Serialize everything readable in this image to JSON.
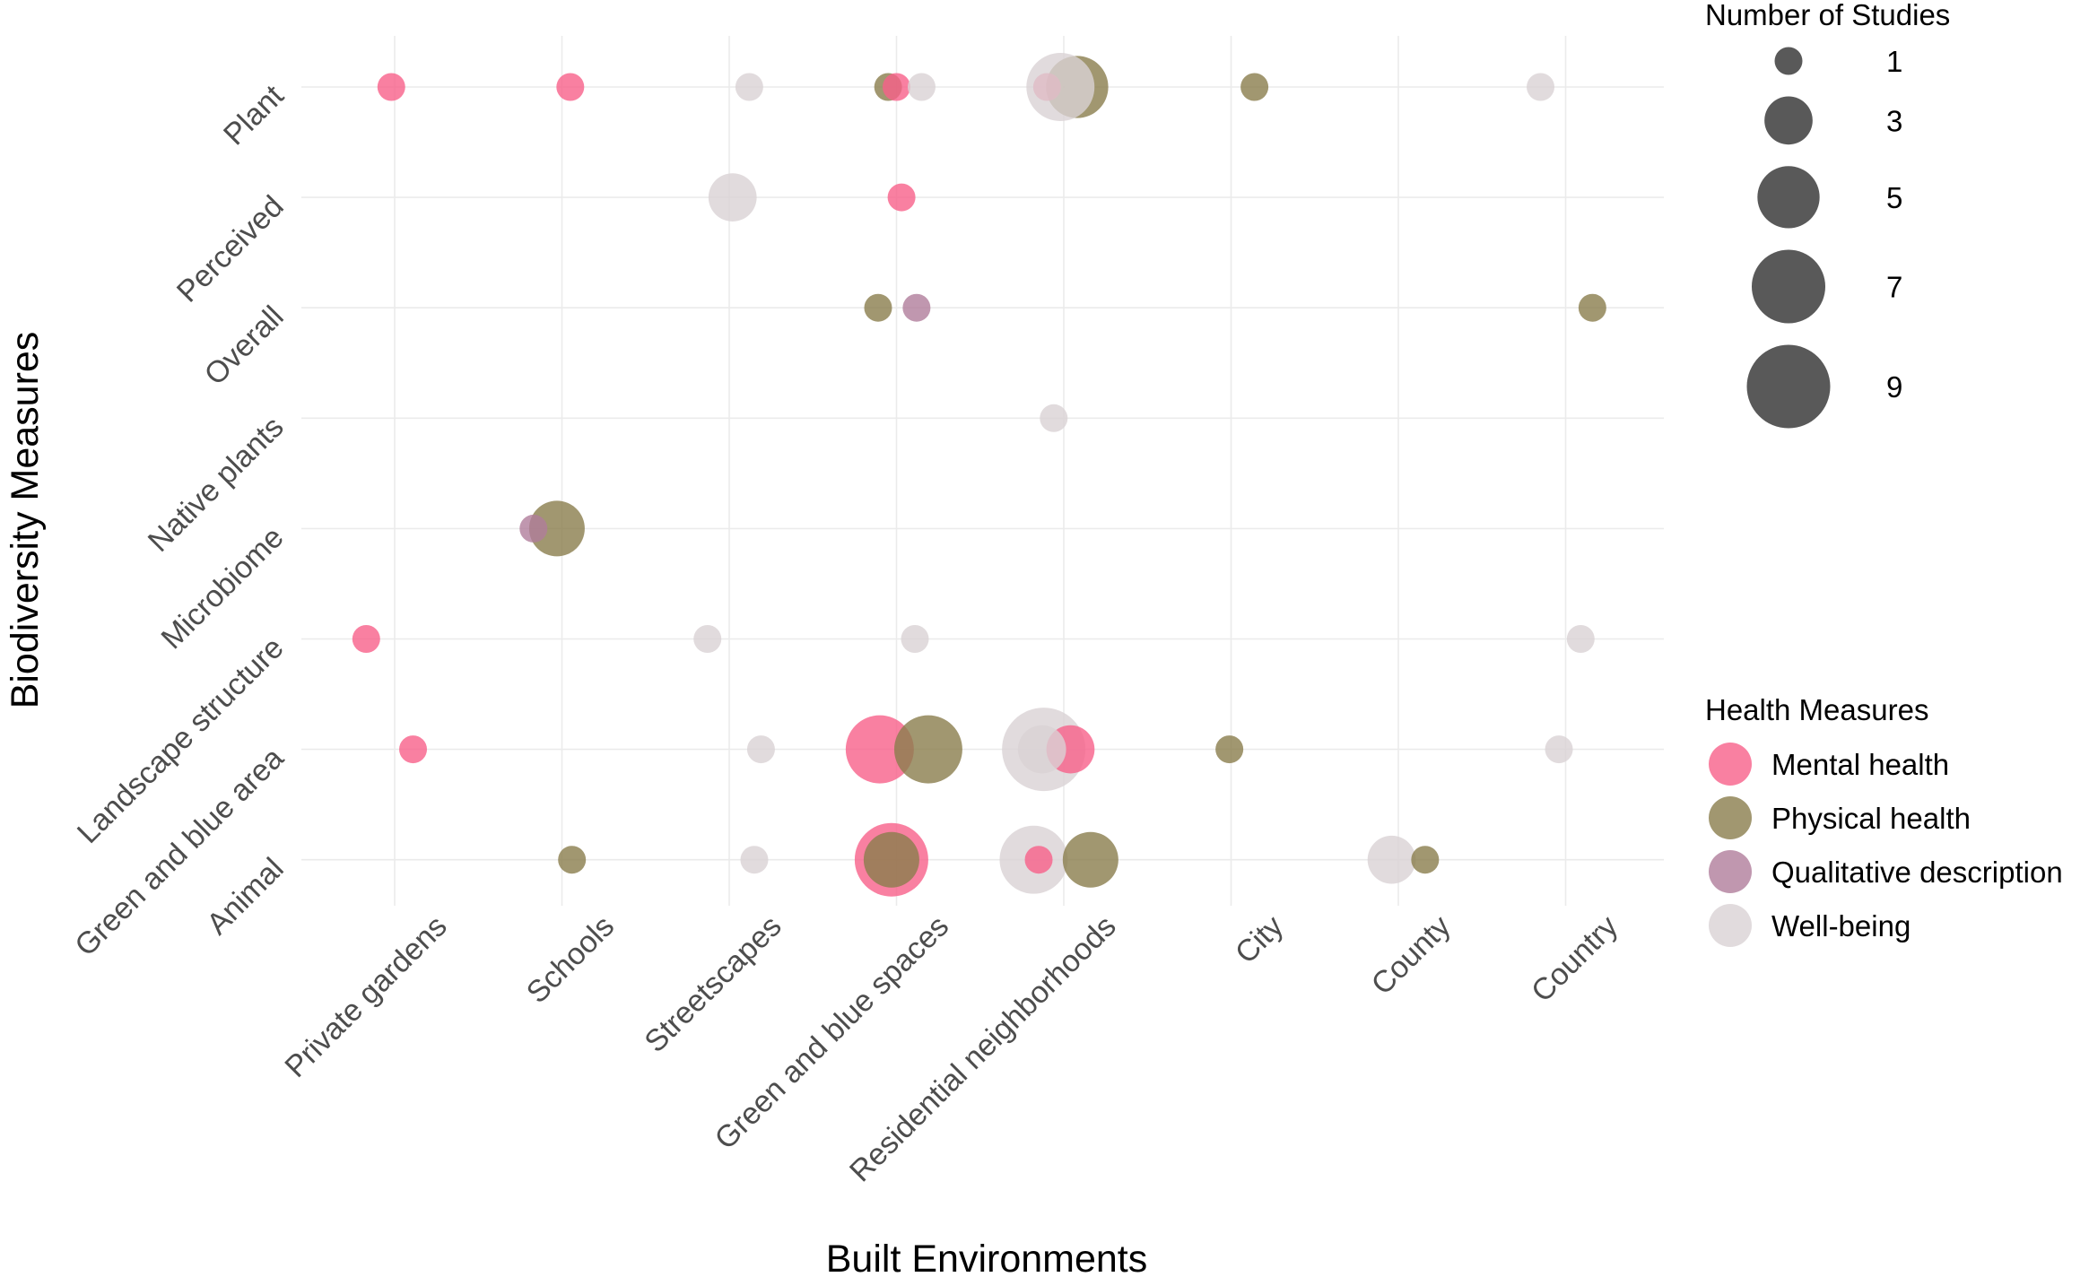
{
  "chart_data": {
    "type": "scatter",
    "title": "",
    "xlabel": "Built Environments",
    "ylabel": "Biodiversity Measures",
    "x_categories": [
      "Private gardens",
      "Schools",
      "Streetscapes",
      "Green and blue spaces",
      "Residential neighborhoods",
      "City",
      "County",
      "Country"
    ],
    "y_categories": [
      "Animal",
      "Green and blue area",
      "Landscape structure",
      "Microbiome",
      "Native plants",
      "Overall",
      "Perceived",
      "Plant"
    ],
    "size_legend": {
      "title": "Number of Studies",
      "values": [
        1,
        3,
        5,
        7,
        9
      ],
      "labels": [
        "1",
        "3",
        "5",
        "7",
        "9"
      ]
    },
    "color_legend": {
      "title": "Health Measures",
      "entries": [
        {
          "name": "Mental health",
          "color": "#f8608a"
        },
        {
          "name": "Physical health",
          "color": "#8a7d4c"
        },
        {
          "name": "Qualitative description",
          "color": "#b07d9b"
        },
        {
          "name": "Well-being",
          "color": "#d9d2d4"
        }
      ]
    },
    "grid": true,
    "points": [
      {
        "x": "Private gardens",
        "offset": -0.02,
        "y": "Plant",
        "group": "Mental health",
        "n": 1
      },
      {
        "x": "Schools",
        "offset": 0.05,
        "y": "Plant",
        "group": "Mental health",
        "n": 1
      },
      {
        "x": "Streetscapes",
        "offset": 0.12,
        "y": "Plant",
        "group": "Well-being",
        "n": 1
      },
      {
        "x": "Green and blue spaces",
        "offset": -0.05,
        "y": "Plant",
        "group": "Physical health",
        "n": 1
      },
      {
        "x": "Green and blue spaces",
        "offset": 0.0,
        "y": "Plant",
        "group": "Mental health",
        "n": 1
      },
      {
        "x": "Green and blue spaces",
        "offset": 0.15,
        "y": "Plant",
        "group": "Well-being",
        "n": 1
      },
      {
        "x": "Residential neighborhoods",
        "offset": 0.08,
        "y": "Plant",
        "group": "Physical health",
        "n": 5
      },
      {
        "x": "Residential neighborhoods",
        "offset": -0.1,
        "y": "Plant",
        "group": "Mental health",
        "n": 1
      },
      {
        "x": "Residential neighborhoods",
        "offset": -0.02,
        "y": "Plant",
        "group": "Well-being",
        "n": 6
      },
      {
        "x": "City",
        "offset": 0.14,
        "y": "Plant",
        "group": "Physical health",
        "n": 1
      },
      {
        "x": "Country",
        "offset": -0.15,
        "y": "Plant",
        "group": "Well-being",
        "n": 1
      },
      {
        "x": "Streetscapes",
        "offset": 0.02,
        "y": "Perceived",
        "group": "Well-being",
        "n": 3
      },
      {
        "x": "Green and blue spaces",
        "offset": 0.03,
        "y": "Perceived",
        "group": "Mental health",
        "n": 1
      },
      {
        "x": "Green and blue spaces",
        "offset": -0.11,
        "y": "Overall",
        "group": "Physical health",
        "n": 1
      },
      {
        "x": "Green and blue spaces",
        "offset": 0.12,
        "y": "Overall",
        "group": "Qualitative description",
        "n": 1
      },
      {
        "x": "Country",
        "offset": 0.16,
        "y": "Overall",
        "group": "Physical health",
        "n": 1
      },
      {
        "x": "Residential neighborhoods",
        "offset": -0.06,
        "y": "Native plants",
        "group": "Well-being",
        "n": 1
      },
      {
        "x": "Schools",
        "offset": -0.03,
        "y": "Microbiome",
        "group": "Physical health",
        "n": 4
      },
      {
        "x": "Schools",
        "offset": -0.17,
        "y": "Microbiome",
        "group": "Qualitative description",
        "n": 1
      },
      {
        "x": "Private gardens",
        "offset": -0.17,
        "y": "Landscape structure",
        "group": "Mental health",
        "n": 1
      },
      {
        "x": "Streetscapes",
        "offset": -0.13,
        "y": "Landscape structure",
        "group": "Well-being",
        "n": 1
      },
      {
        "x": "Green and blue spaces",
        "offset": 0.11,
        "y": "Landscape structure",
        "group": "Well-being",
        "n": 1
      },
      {
        "x": "Country",
        "offset": 0.09,
        "y": "Landscape structure",
        "group": "Well-being",
        "n": 1
      },
      {
        "x": "Private gardens",
        "offset": 0.11,
        "y": "Green and blue area",
        "group": "Mental health",
        "n": 1
      },
      {
        "x": "Streetscapes",
        "offset": 0.19,
        "y": "Green and blue area",
        "group": "Well-being",
        "n": 1
      },
      {
        "x": "Green and blue spaces",
        "offset": -0.1,
        "y": "Green and blue area",
        "group": "Mental health",
        "n": 6
      },
      {
        "x": "Green and blue spaces",
        "offset": 0.19,
        "y": "Green and blue area",
        "group": "Physical health",
        "n": 6
      },
      {
        "x": "Residential neighborhoods",
        "offset": -0.12,
        "y": "Green and blue area",
        "group": "Well-being",
        "n": 9
      },
      {
        "x": "Residential neighborhoods",
        "offset": 0.04,
        "y": "Green and blue area",
        "group": "Mental health",
        "n": 3
      },
      {
        "x": "Residential neighborhoods",
        "offset": -0.13,
        "y": "Green and blue area",
        "group": "Well-being",
        "n": 3
      },
      {
        "x": "City",
        "offset": -0.01,
        "y": "Green and blue area",
        "group": "Physical health",
        "n": 1
      },
      {
        "x": "Country",
        "offset": -0.04,
        "y": "Green and blue area",
        "group": "Well-being",
        "n": 1
      },
      {
        "x": "Schools",
        "offset": 0.06,
        "y": "Animal",
        "group": "Physical health",
        "n": 1
      },
      {
        "x": "Streetscapes",
        "offset": 0.15,
        "y": "Animal",
        "group": "Well-being",
        "n": 1
      },
      {
        "x": "Green and blue spaces",
        "offset": -0.03,
        "y": "Animal",
        "group": "Mental health",
        "n": 7
      },
      {
        "x": "Green and blue spaces",
        "offset": -0.03,
        "y": "Animal",
        "group": "Physical health",
        "n": 4
      },
      {
        "x": "Residential neighborhoods",
        "offset": -0.18,
        "y": "Animal",
        "group": "Well-being",
        "n": 6
      },
      {
        "x": "Residential neighborhoods",
        "offset": -0.15,
        "y": "Animal",
        "group": "Mental health",
        "n": 1
      },
      {
        "x": "Residential neighborhoods",
        "offset": 0.16,
        "y": "Animal",
        "group": "Physical health",
        "n": 4
      },
      {
        "x": "County",
        "offset": -0.04,
        "y": "Animal",
        "group": "Well-being",
        "n": 3
      },
      {
        "x": "County",
        "offset": 0.16,
        "y": "Animal",
        "group": "Physical health",
        "n": 1
      }
    ]
  }
}
